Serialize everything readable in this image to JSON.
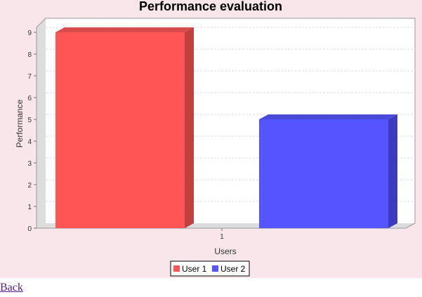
{
  "chart_data": {
    "type": "bar",
    "title": "Performance evaluation",
    "xlabel": "Users",
    "ylabel": "Performance",
    "categories": [
      "1"
    ],
    "series": [
      {
        "name": "User 1",
        "values": [
          9
        ],
        "color": "#ff5555",
        "shade": "#c03f3f",
        "top": "#d94a4a"
      },
      {
        "name": "User 2",
        "values": [
          5
        ],
        "color": "#5555ff",
        "shade": "#3b3bbf",
        "top": "#4a4ad9"
      }
    ],
    "ylim": [
      0,
      9
    ],
    "yticks": [
      0,
      1,
      2,
      3,
      4,
      5,
      6,
      7,
      8,
      9
    ],
    "grid": true,
    "legend_position": "bottom",
    "style": "3d"
  },
  "footer": {
    "back_label": "Back"
  }
}
